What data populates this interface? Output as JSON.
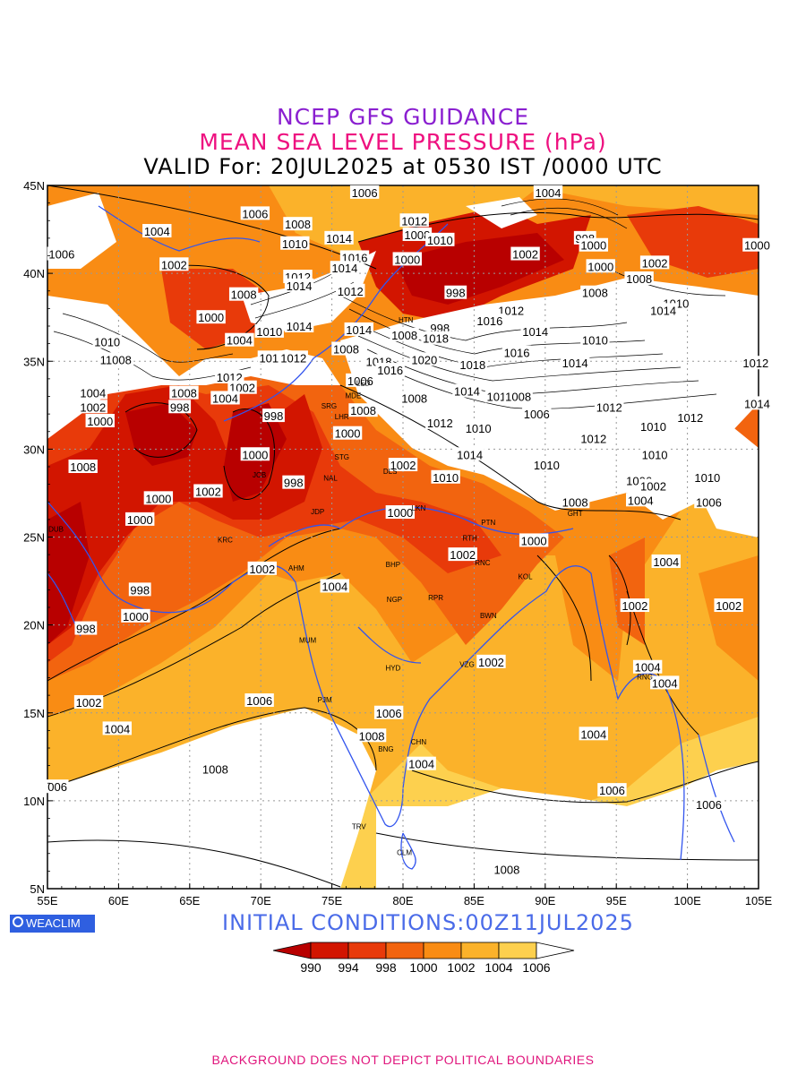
{
  "title": {
    "line1": "NCEP GFS GUIDANCE",
    "line2": "MEAN SEA LEVEL PRESSURE (hPa)",
    "line3": "VALID For: 20JUL2025 at 0530 IST /0000 UTC",
    "color1": "#8a1fd0",
    "color2": "#ee1180",
    "color3": "#000000"
  },
  "axes": {
    "lon_labels": [
      "55E",
      "60E",
      "65E",
      "70E",
      "75E",
      "80E",
      "85E",
      "90E",
      "95E",
      "100E",
      "105E"
    ],
    "lat_labels": [
      "45N",
      "40N",
      "35N",
      "30N",
      "25N",
      "20N",
      "15N",
      "10N",
      "5N"
    ],
    "lon_range": [
      55,
      105
    ],
    "lat_range": [
      5,
      45
    ],
    "grid": "dotted"
  },
  "legend": {
    "colors": [
      "#b80000",
      "#d21500",
      "#e83a0a",
      "#f2640f",
      "#f98c14",
      "#fbb22a",
      "#fdd04e",
      "#ffffff"
    ],
    "labels": [
      "990",
      "994",
      "998",
      "1000",
      "1002",
      "1004",
      "1006"
    ]
  },
  "contour_labels": [
    {
      "t": "1006",
      "lon": 77.3,
      "lat": 44.6
    },
    {
      "t": "1004",
      "lon": 90.2,
      "lat": 44.6
    },
    {
      "t": "1006",
      "lon": 69.6,
      "lat": 43.4
    },
    {
      "t": "1008",
      "lon": 72.6,
      "lat": 42.8
    },
    {
      "t": "1004",
      "lon": 62.7,
      "lat": 42.4
    },
    {
      "t": "1012",
      "lon": 80.8,
      "lat": 43.0
    },
    {
      "t": "1008",
      "lon": 81.0,
      "lat": 42.2
    },
    {
      "t": "1010",
      "lon": 82.6,
      "lat": 41.9
    },
    {
      "t": "1010",
      "lon": 72.4,
      "lat": 41.7
    },
    {
      "t": "1014",
      "lon": 75.5,
      "lat": 42.0
    },
    {
      "t": "998",
      "lon": 92.8,
      "lat": 42.0
    },
    {
      "t": "1000",
      "lon": 93.4,
      "lat": 41.6
    },
    {
      "t": "1006",
      "lon": 56.0,
      "lat": 41.1
    },
    {
      "t": "1000",
      "lon": 104.9,
      "lat": 41.6
    },
    {
      "t": "1016",
      "lon": 76.6,
      "lat": 40.9
    },
    {
      "t": "1000",
      "lon": 80.3,
      "lat": 40.8
    },
    {
      "t": "1002",
      "lon": 63.9,
      "lat": 40.5
    },
    {
      "t": "1002",
      "lon": 88.6,
      "lat": 41.1
    },
    {
      "t": "1014",
      "lon": 75.9,
      "lat": 40.3
    },
    {
      "t": "1002",
      "lon": 97.7,
      "lat": 40.6
    },
    {
      "t": "1000",
      "lon": 93.9,
      "lat": 40.4
    },
    {
      "t": "1012",
      "lon": 72.6,
      "lat": 39.8
    },
    {
      "t": "1008",
      "lon": 96.6,
      "lat": 39.7
    },
    {
      "t": "1014",
      "lon": 72.7,
      "lat": 39.3
    },
    {
      "t": "1012",
      "lon": 76.3,
      "lat": 39.0
    },
    {
      "t": "998",
      "lon": 83.7,
      "lat": 38.9
    },
    {
      "t": "1008",
      "lon": 93.5,
      "lat": 38.9
    },
    {
      "t": "1008",
      "lon": 68.8,
      "lat": 38.8
    },
    {
      "t": "1010",
      "lon": 99.2,
      "lat": 38.3
    },
    {
      "t": "1012",
      "lon": 87.6,
      "lat": 37.9
    },
    {
      "t": "1014",
      "lon": 98.3,
      "lat": 37.9
    },
    {
      "t": "1000",
      "lon": 66.5,
      "lat": 37.5
    },
    {
      "t": "1016",
      "lon": 86.1,
      "lat": 37.3
    },
    {
      "t": "1014",
      "lon": 72.7,
      "lat": 37.0
    },
    {
      "t": "1014",
      "lon": 76.9,
      "lat": 36.8
    },
    {
      "t": "1010",
      "lon": 70.6,
      "lat": 36.7
    },
    {
      "t": "998",
      "lon": 82.6,
      "lat": 36.9
    },
    {
      "t": "1014",
      "lon": 89.3,
      "lat": 36.7
    },
    {
      "t": "1008",
      "lon": 80.1,
      "lat": 36.5
    },
    {
      "t": "1018",
      "lon": 82.3,
      "lat": 36.3
    },
    {
      "t": "1004",
      "lon": 68.5,
      "lat": 36.2
    },
    {
      "t": "1010",
      "lon": 59.2,
      "lat": 36.1
    },
    {
      "t": "1010",
      "lon": 93.5,
      "lat": 36.2
    },
    {
      "t": "1016",
      "lon": 88.0,
      "lat": 35.5
    },
    {
      "t": "1008",
      "lon": 76.0,
      "lat": 35.7
    },
    {
      "t": "11008",
      "lon": 59.8,
      "lat": 35.1
    },
    {
      "t": "1010",
      "lon": 70.8,
      "lat": 35.2
    },
    {
      "t": "1012",
      "lon": 72.3,
      "lat": 35.2
    },
    {
      "t": "1018",
      "lon": 78.3,
      "lat": 35.0
    },
    {
      "t": "1020",
      "lon": 81.5,
      "lat": 35.1
    },
    {
      "t": "1018",
      "lon": 84.9,
      "lat": 34.8
    },
    {
      "t": "1014",
      "lon": 92.1,
      "lat": 34.9
    },
    {
      "t": "1012",
      "lon": 104.8,
      "lat": 34.9
    },
    {
      "t": "1016",
      "lon": 79.1,
      "lat": 34.5
    },
    {
      "t": "1012",
      "lon": 67.8,
      "lat": 34.1
    },
    {
      "t": "1006",
      "lon": 77.0,
      "lat": 33.9
    },
    {
      "t": "1004",
      "lon": 58.2,
      "lat": 33.2
    },
    {
      "t": "1008",
      "lon": 64.6,
      "lat": 33.2
    },
    {
      "t": "1002",
      "lon": 68.7,
      "lat": 33.5
    },
    {
      "t": "1004",
      "lon": 67.5,
      "lat": 32.9
    },
    {
      "t": "1008",
      "lon": 80.8,
      "lat": 32.9
    },
    {
      "t": "1014",
      "lon": 84.5,
      "lat": 33.3
    },
    {
      "t": "1010",
      "lon": 86.8,
      "lat": 33.0
    },
    {
      "t": "1008",
      "lon": 88.1,
      "lat": 33.0
    },
    {
      "t": "1002",
      "lon": 58.2,
      "lat": 32.4
    },
    {
      "t": "998",
      "lon": 64.3,
      "lat": 32.4
    },
    {
      "t": "1008",
      "lon": 77.2,
      "lat": 32.2
    },
    {
      "t": "1006",
      "lon": 89.4,
      "lat": 32.0
    },
    {
      "t": "1012",
      "lon": 94.5,
      "lat": 32.4
    },
    {
      "t": "1014",
      "lon": 104.9,
      "lat": 32.6
    },
    {
      "t": "998",
      "lon": 70.9,
      "lat": 31.9
    },
    {
      "t": "1000",
      "lon": 58.7,
      "lat": 31.6
    },
    {
      "t": "1012",
      "lon": 82.6,
      "lat": 31.5
    },
    {
      "t": "1012",
      "lon": 100.2,
      "lat": 31.8
    },
    {
      "t": "1010",
      "lon": 85.3,
      "lat": 31.2
    },
    {
      "t": "1010",
      "lon": 97.6,
      "lat": 31.3
    },
    {
      "t": "1000",
      "lon": 76.1,
      "lat": 30.9
    },
    {
      "t": "1012",
      "lon": 93.4,
      "lat": 30.6
    },
    {
      "t": "1000",
      "lon": 69.6,
      "lat": 29.7
    },
    {
      "t": "1014",
      "lon": 84.7,
      "lat": 29.7
    },
    {
      "t": "1010",
      "lon": 97.7,
      "lat": 29.7
    },
    {
      "t": "1002",
      "lon": 80.0,
      "lat": 29.1
    },
    {
      "t": "1008",
      "lon": 57.5,
      "lat": 29.0
    },
    {
      "t": "1010",
      "lon": 90.1,
      "lat": 29.1
    },
    {
      "t": "1010",
      "lon": 83.0,
      "lat": 28.4
    },
    {
      "t": "1010",
      "lon": 101.4,
      "lat": 28.4
    },
    {
      "t": "998",
      "lon": 72.3,
      "lat": 28.1
    },
    {
      "t": "1006",
      "lon": 96.6,
      "lat": 28.2
    },
    {
      "t": "1002",
      "lon": 97.6,
      "lat": 27.9
    },
    {
      "t": "1002",
      "lon": 66.3,
      "lat": 27.6
    },
    {
      "t": "1000",
      "lon": 62.8,
      "lat": 27.2
    },
    {
      "t": "1008",
      "lon": 92.1,
      "lat": 27.0
    },
    {
      "t": "1004",
      "lon": 96.7,
      "lat": 27.1
    },
    {
      "t": "1006",
      "lon": 101.5,
      "lat": 27.0
    },
    {
      "t": "1000",
      "lon": 79.8,
      "lat": 26.4
    },
    {
      "t": "1000",
      "lon": 61.5,
      "lat": 26.0
    },
    {
      "t": "1000",
      "lon": 89.2,
      "lat": 24.8
    },
    {
      "t": "1002",
      "lon": 84.2,
      "lat": 24.0
    },
    {
      "t": "1004",
      "lon": 98.5,
      "lat": 23.6
    },
    {
      "t": "1002",
      "lon": 70.1,
      "lat": 23.2
    },
    {
      "t": "1004",
      "lon": 75.2,
      "lat": 22.2
    },
    {
      "t": "998",
      "lon": 61.5,
      "lat": 22.0
    },
    {
      "t": "1002",
      "lon": 96.3,
      "lat": 21.1
    },
    {
      "t": "1002",
      "lon": 102.9,
      "lat": 21.1
    },
    {
      "t": "1000",
      "lon": 61.2,
      "lat": 20.5
    },
    {
      "t": "998",
      "lon": 57.7,
      "lat": 19.8
    },
    {
      "t": "1002",
      "lon": 86.2,
      "lat": 17.9
    },
    {
      "t": "1004",
      "lon": 97.2,
      "lat": 17.6
    },
    {
      "t": "1004",
      "lon": 98.4,
      "lat": 16.7
    },
    {
      "t": "1002",
      "lon": 57.9,
      "lat": 15.6
    },
    {
      "t": "1006",
      "lon": 69.9,
      "lat": 15.7
    },
    {
      "t": "1006",
      "lon": 79.0,
      "lat": 15.0
    },
    {
      "t": "1004",
      "lon": 59.9,
      "lat": 14.1
    },
    {
      "t": "1008",
      "lon": 77.8,
      "lat": 13.7
    },
    {
      "t": "1004",
      "lon": 93.4,
      "lat": 13.8
    },
    {
      "t": "1004",
      "lon": 81.3,
      "lat": 12.1
    },
    {
      "t": "1008",
      "lon": 66.8,
      "lat": 11.8
    },
    {
      "t": "006",
      "lon": 55.7,
      "lat": 10.8
    },
    {
      "t": "1006",
      "lon": 94.7,
      "lat": 10.6
    },
    {
      "t": "1006",
      "lon": 101.5,
      "lat": 9.8
    },
    {
      "t": "1008",
      "lon": 87.3,
      "lat": 6.1
    }
  ],
  "cities": [
    {
      "t": "HTN",
      "lon": 80.2,
      "lat": 37.2
    },
    {
      "t": "SRG",
      "lon": 74.8,
      "lat": 32.3
    },
    {
      "t": "LHR",
      "lon": 75.7,
      "lat": 31.7
    },
    {
      "t": "STG",
      "lon": 75.7,
      "lat": 29.4
    },
    {
      "t": "NAL",
      "lon": 74.9,
      "lat": 28.2
    },
    {
      "t": "DLS",
      "lon": 79.1,
      "lat": 28.6
    },
    {
      "t": "JCB",
      "lon": 69.9,
      "lat": 28.4
    },
    {
      "t": "JDP",
      "lon": 74.0,
      "lat": 26.3
    },
    {
      "t": "LKN",
      "lon": 81.1,
      "lat": 26.5
    },
    {
      "t": "PTN",
      "lon": 86.0,
      "lat": 25.7
    },
    {
      "t": "RTH",
      "lon": 84.7,
      "lat": 24.8
    },
    {
      "t": "KRC",
      "lon": 67.5,
      "lat": 24.7
    },
    {
      "t": "DUB",
      "lon": 55.6,
      "lat": 25.3
    },
    {
      "t": "AHM",
      "lon": 72.5,
      "lat": 23.1
    },
    {
      "t": "BHP",
      "lon": 79.3,
      "lat": 23.3
    },
    {
      "t": "RNC",
      "lon": 85.6,
      "lat": 23.4
    },
    {
      "t": "KOL",
      "lon": 88.6,
      "lat": 22.6
    },
    {
      "t": "NGP",
      "lon": 79.4,
      "lat": 21.3
    },
    {
      "t": "RPR",
      "lon": 82.3,
      "lat": 21.4
    },
    {
      "t": "BWN",
      "lon": 86.0,
      "lat": 20.4
    },
    {
      "t": "MUM",
      "lon": 73.3,
      "lat": 19.0
    },
    {
      "t": "HYD",
      "lon": 79.3,
      "lat": 17.4
    },
    {
      "t": "VZG",
      "lon": 84.5,
      "lat": 17.6
    },
    {
      "t": "PJM",
      "lon": 74.5,
      "lat": 15.6
    },
    {
      "t": "CHN",
      "lon": 81.1,
      "lat": 13.2
    },
    {
      "t": "BNG",
      "lon": 78.8,
      "lat": 12.8
    },
    {
      "t": "TRV",
      "lon": 76.9,
      "lat": 8.4
    },
    {
      "t": "CLM",
      "lon": 80.1,
      "lat": 6.9
    },
    {
      "t": "GHT",
      "lon": 92.1,
      "lat": 26.2
    },
    {
      "t": "RNG",
      "lon": 97.0,
      "lat": 16.9
    },
    {
      "t": "LED",
      "lon": 77.2,
      "lat": 33.6
    },
    {
      "t": "MDE",
      "lon": 76.5,
      "lat": 32.9
    }
  ],
  "brand": {
    "text": "WEACLIM",
    "color": "#2f5fe0"
  },
  "initial_conditions": {
    "text": "INITIAL  CONDITIONS:00Z11JUL2025",
    "color": "#4a6be8"
  },
  "footer": {
    "text": "BACKGROUND DOES NOT DEPICT POLITICAL BOUNDARIES",
    "color": "#e0147c"
  }
}
